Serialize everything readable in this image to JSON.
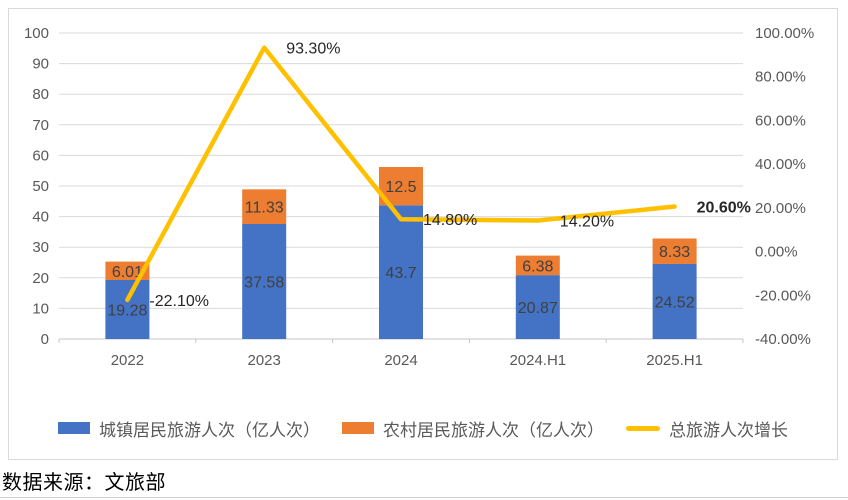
{
  "page": {
    "source_note": "数据来源：文旅部"
  },
  "chart_data": {
    "type": "combo-stacked-bar-line",
    "categories": [
      "2022",
      "2023",
      "2024",
      "2024.H1",
      "2025.H1"
    ],
    "bar_series": [
      {
        "name": "城镇居民旅游人次（亿人次）",
        "values": [
          19.28,
          37.58,
          43.7,
          20.87,
          24.52
        ],
        "labels": [
          "19.28",
          "37.58",
          "43.7",
          "20.87",
          "24.52"
        ],
        "color": "#4472C4"
      },
      {
        "name": "农村居民旅游人次（亿人次）",
        "values": [
          6.01,
          11.33,
          12.5,
          6.38,
          8.33
        ],
        "labels": [
          "6.01",
          "11.33",
          "12.5",
          "6.38",
          "8.33"
        ],
        "color": "#ED7D31"
      }
    ],
    "line_series": {
      "name": "总旅游人次增长",
      "axis": "right",
      "values_pct": [
        -22.1,
        93.3,
        14.8,
        14.2,
        20.6
      ],
      "labels": [
        "-22.10%",
        "93.30%",
        "14.80%",
        "14.20%",
        "20.60%"
      ],
      "label_bold": [
        false,
        false,
        false,
        false,
        true
      ],
      "color": "#FFC000"
    },
    "left_axis": {
      "min": 0,
      "max": 100,
      "step": 10,
      "tick_labels": [
        "0",
        "10",
        "20",
        "30",
        "40",
        "50",
        "60",
        "70",
        "80",
        "90",
        "100"
      ]
    },
    "right_axis": {
      "min": -40,
      "max": 100,
      "step": 20,
      "tick_labels": [
        "-40.00%",
        "-20.00%",
        "0.00%",
        "20.00%",
        "40.00%",
        "60.00%",
        "80.00%",
        "100.00%"
      ]
    },
    "grid": true,
    "legend_position": "bottom-center",
    "colors": {
      "grid": "#D9D9D9",
      "axis_line": "#C6C6C6",
      "axis_text": "#595959",
      "bar_label": "#404040",
      "line_label": "#262626",
      "frame_border": "#D9D9D9"
    }
  }
}
